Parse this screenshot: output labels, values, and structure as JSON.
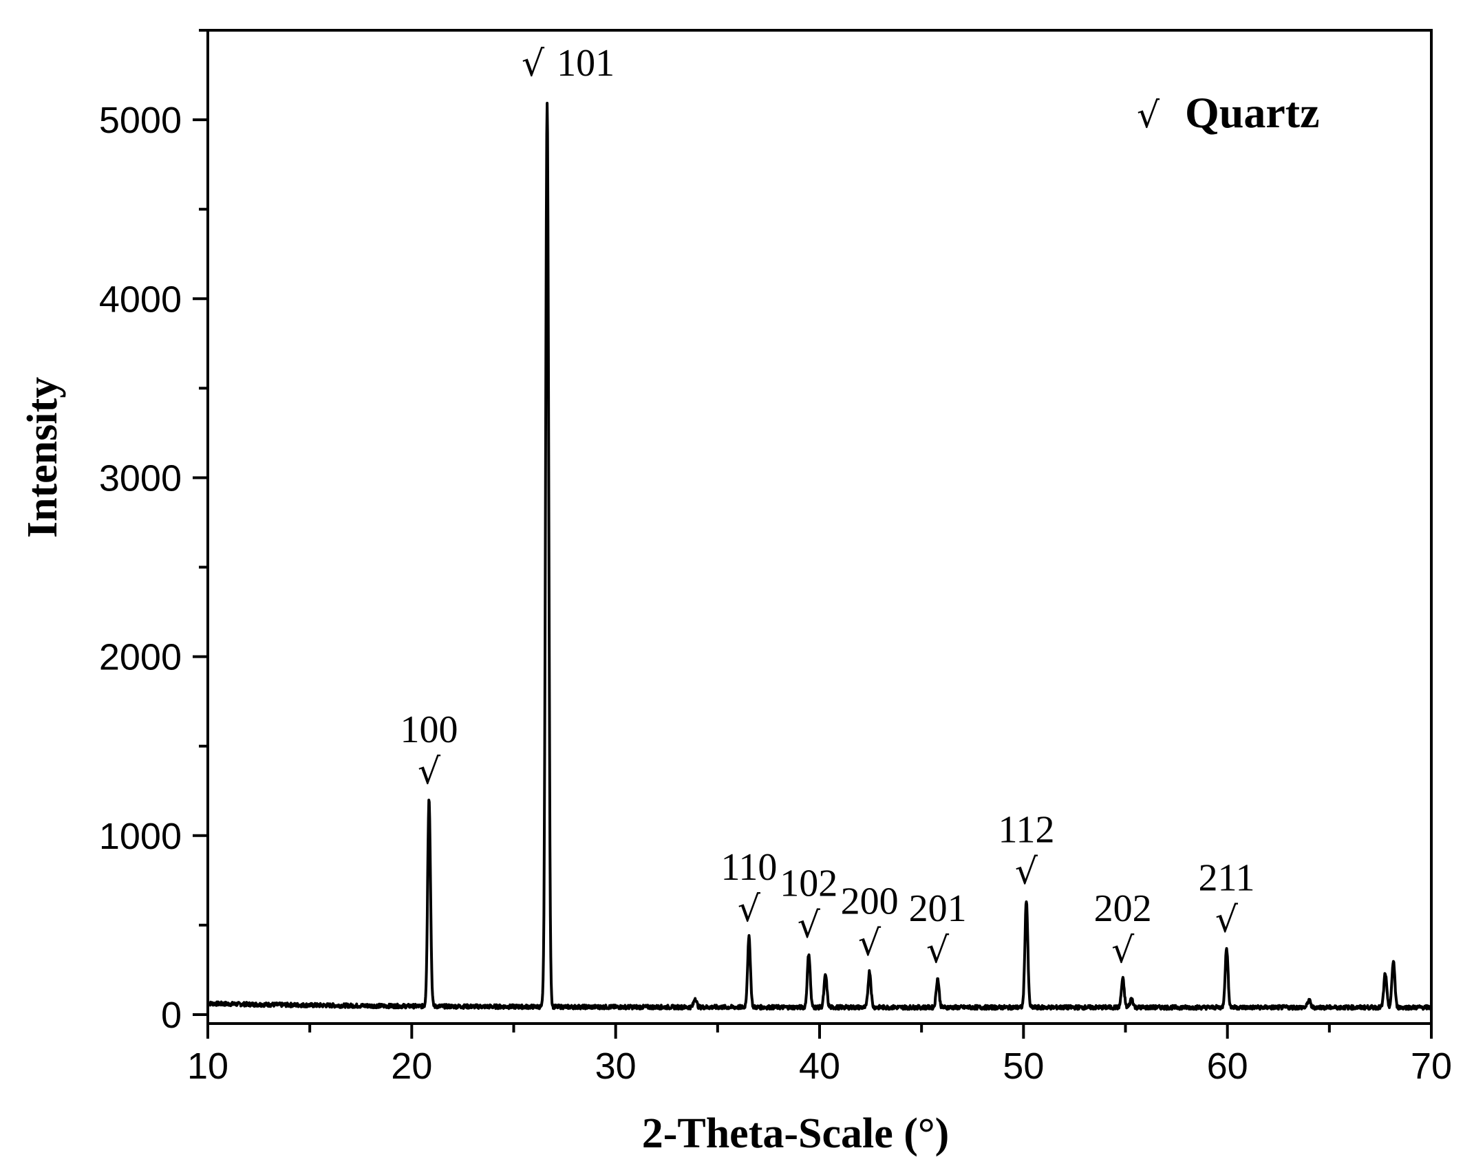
{
  "chart_data": {
    "type": "line",
    "xlabel": "2-Theta-Scale (°)",
    "ylabel": "Intensity",
    "xlim": [
      10,
      70
    ],
    "ylim": [
      -50,
      5500
    ],
    "x_ticks": [
      10,
      20,
      30,
      40,
      50,
      60,
      70
    ],
    "y_ticks": [
      0,
      1000,
      2000,
      3000,
      4000,
      5000
    ],
    "baseline": 40,
    "peaks": [
      {
        "x": 20.85,
        "y": 1200
      },
      {
        "x": 26.64,
        "y": 5100
      },
      {
        "x": 33.9,
        "y": 90
      },
      {
        "x": 36.54,
        "y": 430
      },
      {
        "x": 39.47,
        "y": 340
      },
      {
        "x": 40.29,
        "y": 220
      },
      {
        "x": 42.45,
        "y": 240
      },
      {
        "x": 45.79,
        "y": 200
      },
      {
        "x": 50.14,
        "y": 640
      },
      {
        "x": 54.87,
        "y": 200
      },
      {
        "x": 55.3,
        "y": 90
      },
      {
        "x": 59.96,
        "y": 370
      },
      {
        "x": 64.0,
        "y": 80
      },
      {
        "x": 67.74,
        "y": 230
      },
      {
        "x": 68.14,
        "y": 300
      }
    ],
    "annotations": [
      {
        "label": "100",
        "x": 20.85,
        "style": "above",
        "y": 1200
      },
      {
        "label": "101",
        "x": 26.64,
        "style": "right",
        "y": 5100
      },
      {
        "label": "110",
        "x": 36.54,
        "style": "above",
        "y": 430
      },
      {
        "label": "102",
        "x": 39.47,
        "style": "above",
        "y": 340
      },
      {
        "label": "200",
        "x": 42.45,
        "style": "above",
        "y": 240
      },
      {
        "label": "201",
        "x": 45.79,
        "style": "above",
        "y": 200
      },
      {
        "label": "112",
        "x": 50.14,
        "style": "above",
        "y": 640
      },
      {
        "label": "202",
        "x": 54.87,
        "style": "above",
        "y": 200
      },
      {
        "label": "211",
        "x": 59.96,
        "style": "above",
        "y": 370
      }
    ],
    "legend": {
      "marker": "√",
      "label": "Quartz",
      "position": "top-right"
    },
    "line_color": "#000000"
  }
}
